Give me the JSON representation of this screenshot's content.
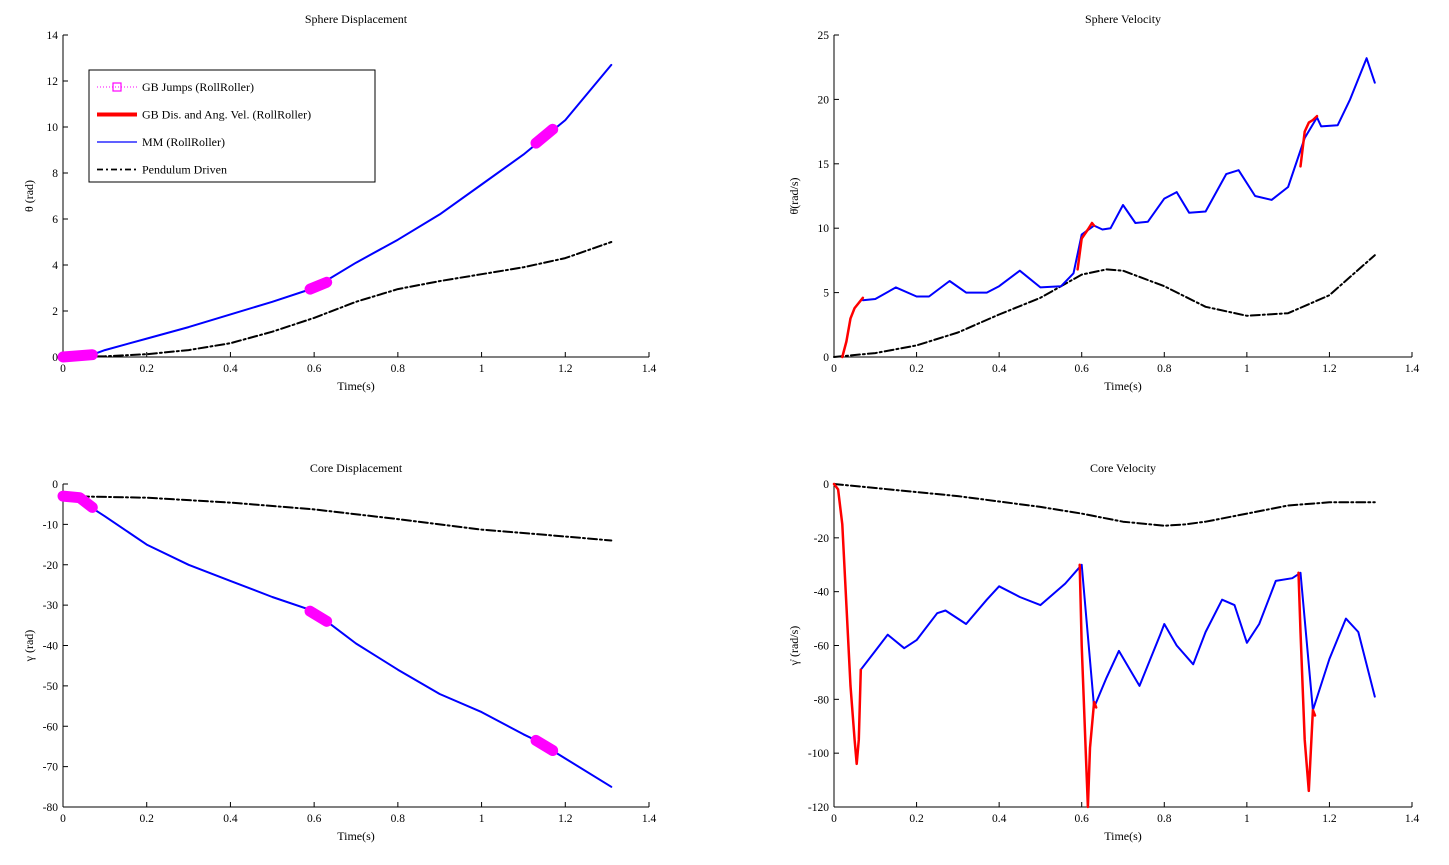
{
  "figure": {
    "legend": {
      "entries": [
        {
          "label": "GB Jumps (RollRoller)",
          "color": "#ff00ff",
          "style": "dotted-square"
        },
        {
          "label": "GB Dis. and Ang. Vel. (RollRoller)",
          "color": "#ff0000",
          "style": "thick"
        },
        {
          "label": "MM (RollRoller)",
          "color": "#0000ff",
          "style": "solid"
        },
        {
          "label": "Pendulum Driven",
          "color": "#000000",
          "style": "dashdot"
        }
      ]
    }
  },
  "chart_data": [
    {
      "id": "sphere-displacement",
      "type": "line",
      "title": "Sphere Displacement",
      "xlabel": "Time(s)",
      "ylabel": "θ (rad)",
      "xlim": [
        0,
        1.4
      ],
      "ylim": [
        0,
        14
      ],
      "xticks": [
        "0",
        "0.2",
        "0.4",
        "0.6",
        "0.8",
        "1",
        "1.2",
        "1.4"
      ],
      "yticks": [
        "0",
        "2",
        "4",
        "6",
        "8",
        "10",
        "12",
        "14"
      ],
      "series": [
        {
          "name": "MM (RollRoller)",
          "color": "#0000ff",
          "x": [
            0,
            0.07,
            0.1,
            0.2,
            0.3,
            0.4,
            0.5,
            0.6,
            0.7,
            0.8,
            0.9,
            1.0,
            1.1,
            1.2,
            1.31
          ],
          "y": [
            0,
            0.1,
            0.3,
            0.8,
            1.3,
            1.85,
            2.4,
            3.0,
            4.1,
            5.1,
            6.2,
            7.5,
            8.8,
            10.3,
            12.7
          ]
        },
        {
          "name": "Pendulum Driven",
          "color": "#000000",
          "x": [
            0,
            0.1,
            0.2,
            0.3,
            0.4,
            0.5,
            0.6,
            0.7,
            0.8,
            0.9,
            1.0,
            1.1,
            1.2,
            1.31
          ],
          "y": [
            0,
            0.03,
            0.12,
            0.3,
            0.6,
            1.1,
            1.7,
            2.4,
            2.95,
            3.3,
            3.6,
            3.9,
            4.3,
            5.0
          ]
        },
        {
          "name": "GB Jumps (RollRoller)",
          "color": "#ff00ff",
          "segments": [
            [
              [
                0,
                0
              ],
              [
                0.07,
                0.1
              ]
            ],
            [
              [
                0.59,
                2.95
              ],
              [
                0.63,
                3.25
              ]
            ],
            [
              [
                1.13,
                9.3
              ],
              [
                1.17,
                9.9
              ]
            ]
          ]
        }
      ]
    },
    {
      "id": "sphere-velocity",
      "type": "line",
      "title": "Sphere Velocity",
      "xlabel": "Time(s)",
      "ylabel": "θ̇(rad/s)",
      "xlim": [
        0,
        1.4
      ],
      "ylim": [
        0,
        25
      ],
      "xticks": [
        "0",
        "0.2",
        "0.4",
        "0.6",
        "0.8",
        "1",
        "1.2",
        "1.4"
      ],
      "yticks": [
        "0",
        "5",
        "10",
        "15",
        "20",
        "25"
      ],
      "series": [
        {
          "name": "MM (RollRoller)",
          "color": "#0000ff",
          "x": [
            0.07,
            0.1,
            0.15,
            0.2,
            0.23,
            0.28,
            0.32,
            0.37,
            0.4,
            0.45,
            0.5,
            0.55,
            0.58,
            0.6,
            0.63,
            0.65,
            0.67,
            0.7,
            0.73,
            0.76,
            0.8,
            0.83,
            0.86,
            0.9,
            0.95,
            0.98,
            1.02,
            1.06,
            1.1,
            1.14,
            1.17,
            1.18,
            1.22,
            1.25,
            1.29,
            1.31
          ],
          "y": [
            4.4,
            4.5,
            5.4,
            4.7,
            4.7,
            5.9,
            5.0,
            5.0,
            5.5,
            6.7,
            5.4,
            5.5,
            6.5,
            9.5,
            10.2,
            9.9,
            10.0,
            11.8,
            10.4,
            10.5,
            12.3,
            12.8,
            11.2,
            11.3,
            14.2,
            14.5,
            12.5,
            12.2,
            13.2,
            17.0,
            18.6,
            17.9,
            18.0,
            20.0,
            23.2,
            21.3
          ]
        },
        {
          "name": "GB Dis. and Ang. Vel. (RollRoller)",
          "color": "#ff0000",
          "segments": [
            [
              [
                0.02,
                0
              ],
              [
                0.03,
                1.2
              ],
              [
                0.04,
                3.0
              ],
              [
                0.05,
                3.8
              ],
              [
                0.06,
                4.2
              ],
              [
                0.07,
                4.6
              ]
            ],
            [
              [
                0.59,
                6.8
              ],
              [
                0.6,
                9.2
              ],
              [
                0.615,
                9.9
              ],
              [
                0.625,
                10.4
              ],
              [
                0.63,
                10.2
              ]
            ],
            [
              [
                1.13,
                14.8
              ],
              [
                1.14,
                17.5
              ],
              [
                1.15,
                18.2
              ],
              [
                1.16,
                18.4
              ],
              [
                1.17,
                18.7
              ]
            ]
          ]
        },
        {
          "name": "Pendulum Driven",
          "color": "#000000",
          "x": [
            0,
            0.1,
            0.2,
            0.3,
            0.4,
            0.5,
            0.6,
            0.66,
            0.7,
            0.8,
            0.9,
            1.0,
            1.1,
            1.2,
            1.31
          ],
          "y": [
            0,
            0.3,
            0.9,
            1.9,
            3.3,
            4.6,
            6.4,
            6.8,
            6.7,
            5.5,
            3.9,
            3.2,
            3.4,
            4.8,
            7.9
          ]
        }
      ]
    },
    {
      "id": "core-displacement",
      "type": "line",
      "title": "Core Displacement",
      "xlabel": "Time(s)",
      "ylabel": "γ (rad)",
      "xlim": [
        0,
        1.4
      ],
      "ylim": [
        -80,
        0
      ],
      "xticks": [
        "0",
        "0.2",
        "0.4",
        "0.6",
        "0.8",
        "1",
        "1.2",
        "1.4"
      ],
      "yticks": [
        "0",
        "-10",
        "-20",
        "-30",
        "-40",
        "-50",
        "-60",
        "-70",
        "-80"
      ],
      "series": [
        {
          "name": "MM (RollRoller)",
          "color": "#0000ff",
          "x": [
            0,
            0.04,
            0.07,
            0.1,
            0.2,
            0.3,
            0.4,
            0.5,
            0.6,
            0.63,
            0.7,
            0.8,
            0.9,
            1.0,
            1.1,
            1.13,
            1.2,
            1.31
          ],
          "y": [
            -3,
            -3.5,
            -6,
            -8,
            -15,
            -20,
            -24,
            -28,
            -31.5,
            -34,
            -39.5,
            -46,
            -52,
            -56.5,
            -62,
            -63.5,
            -68,
            -75
          ]
        },
        {
          "name": "Pendulum Driven",
          "color": "#000000",
          "x": [
            0,
            0.2,
            0.4,
            0.6,
            0.8,
            1.0,
            1.2,
            1.31
          ],
          "y": [
            -3,
            -3.4,
            -4.6,
            -6.3,
            -8.7,
            -11.3,
            -13,
            -14
          ]
        },
        {
          "name": "GB Jumps (RollRoller)",
          "color": "#ff00ff",
          "segments": [
            [
              [
                0,
                -3
              ],
              [
                0.04,
                -3.4
              ],
              [
                0.07,
                -5.8
              ]
            ],
            [
              [
                0.59,
                -31.5
              ],
              [
                0.63,
                -34
              ]
            ],
            [
              [
                1.13,
                -63.5
              ],
              [
                1.17,
                -66
              ]
            ]
          ]
        }
      ]
    },
    {
      "id": "core-velocity",
      "type": "line",
      "title": "Core Velocity",
      "xlabel": "Time(s)",
      "ylabel": "γ̇ (rad/s)",
      "xlim": [
        0,
        1.4
      ],
      "ylim": [
        -120,
        0
      ],
      "xticks": [
        "0",
        "0.2",
        "0.4",
        "0.6",
        "0.8",
        "1",
        "1.2",
        "1.4"
      ],
      "yticks": [
        "0",
        "-20",
        "-40",
        "-60",
        "-80",
        "-100",
        "-120"
      ],
      "series": [
        {
          "name": "MM (RollRoller)",
          "color": "#0000ff",
          "x": [
            0.065,
            0.1,
            0.13,
            0.17,
            0.2,
            0.25,
            0.27,
            0.32,
            0.37,
            0.4,
            0.45,
            0.5,
            0.56,
            0.6,
            0.63,
            0.66,
            0.69,
            0.74,
            0.79,
            0.8,
            0.83,
            0.87,
            0.9,
            0.94,
            0.97,
            1.0,
            1.03,
            1.07,
            1.11,
            1.13,
            1.16,
            1.2,
            1.24,
            1.27,
            1.31
          ],
          "y": [
            -69,
            -62,
            -56,
            -61,
            -58,
            -48,
            -47,
            -52,
            -43,
            -38,
            -42,
            -45,
            -37,
            -30,
            -83,
            -72,
            -62,
            -75,
            -56,
            -52,
            -60,
            -67,
            -55,
            -43,
            -45,
            -59,
            -52,
            -36,
            -35,
            -33,
            -84,
            -65,
            -50,
            -55,
            -79
          ]
        },
        {
          "name": "GB Dis. and Ang. Vel. (RollRoller)",
          "color": "#ff0000",
          "segments": [
            [
              [
                0,
                0
              ],
              [
                0.01,
                -2
              ],
              [
                0.02,
                -15
              ],
              [
                0.03,
                -45
              ],
              [
                0.04,
                -75
              ],
              [
                0.05,
                -95
              ],
              [
                0.055,
                -104
              ],
              [
                0.06,
                -95
              ],
              [
                0.065,
                -69
              ]
            ],
            [
              [
                0.595,
                -30
              ],
              [
                0.6,
                -60
              ],
              [
                0.61,
                -100
              ],
              [
                0.615,
                -120
              ],
              [
                0.62,
                -98
              ],
              [
                0.63,
                -81
              ],
              [
                0.635,
                -83
              ]
            ],
            [
              [
                1.125,
                -33
              ],
              [
                1.13,
                -55
              ],
              [
                1.14,
                -95
              ],
              [
                1.15,
                -114
              ],
              [
                1.16,
                -84
              ],
              [
                1.165,
                -86
              ]
            ]
          ]
        },
        {
          "name": "Pendulum Driven",
          "color": "#000000",
          "x": [
            0,
            0.1,
            0.2,
            0.3,
            0.4,
            0.5,
            0.6,
            0.7,
            0.8,
            0.85,
            0.9,
            1.0,
            1.1,
            1.2,
            1.31
          ],
          "y": [
            0,
            -1.5,
            -3,
            -4.5,
            -6.5,
            -8.5,
            -11,
            -14,
            -15.5,
            -15,
            -14,
            -11,
            -8,
            -6.8,
            -6.8
          ]
        }
      ]
    }
  ]
}
